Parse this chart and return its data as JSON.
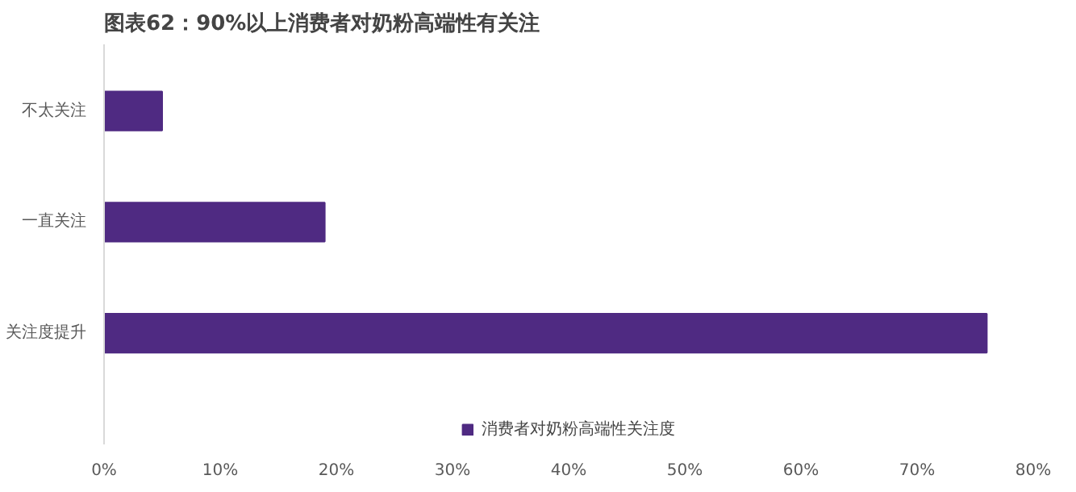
{
  "chart_data": {
    "type": "bar",
    "orientation": "horizontal",
    "title": "图表62：90%以上消费者对奶粉高端性有关注",
    "categories": [
      "不太关注",
      "一直关注",
      "关注度提升"
    ],
    "series": [
      {
        "name": "消费者对奶粉高端性关注度",
        "color": "#4f2a82",
        "values": [
          5,
          19,
          76
        ]
      }
    ],
    "xlim": [
      0,
      80
    ],
    "xticks": [
      {
        "value": 0,
        "label": "0%"
      },
      {
        "value": 10,
        "label": "10%"
      },
      {
        "value": 20,
        "label": "20%"
      },
      {
        "value": 30,
        "label": "30%"
      },
      {
        "value": 40,
        "label": "40%"
      },
      {
        "value": 50,
        "label": "50%"
      },
      {
        "value": 60,
        "label": "60%"
      },
      {
        "value": 70,
        "label": "70%"
      },
      {
        "value": 80,
        "label": "80%"
      }
    ],
    "grid": false,
    "legend": "bottom"
  }
}
